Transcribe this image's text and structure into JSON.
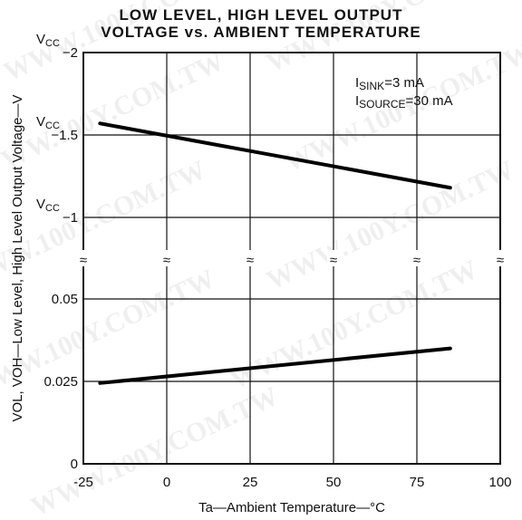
{
  "chart_data": {
    "type": "line",
    "title_lines": [
      "LOW LEVEL, HIGH LEVEL OUTPUT",
      "VOLTAGE vs. AMBIENT TEMPERATURE"
    ],
    "xlabel": "Ta—Ambient Temperature—°C",
    "ylabel": "VOL, VOH—Low Level, High Level Output Voltage—V",
    "x_ticks": [
      "-25",
      "0",
      "25",
      "50",
      "75",
      "100"
    ],
    "xlim": [
      -25,
      100
    ],
    "grid": true,
    "axis_break": "≈",
    "upper_panel": {
      "ylim": [
        -2,
        -1
      ],
      "y_ticks": [
        {
          "value": -2,
          "prefix": "VCC",
          "label": "−2"
        },
        {
          "value": -1.5,
          "prefix": "VCC",
          "label": "−1.5"
        },
        {
          "value": -1,
          "prefix": "VCC",
          "label": "−1"
        }
      ],
      "series": [
        {
          "x": [
            -20,
            85
          ],
          "values": [
            -1.57,
            -1.18
          ]
        }
      ]
    },
    "lower_panel": {
      "ylim": [
        0,
        0.05
      ],
      "y_ticks": [
        {
          "value": 0.05,
          "label": "0.05"
        },
        {
          "value": 0.025,
          "label": "0.025"
        },
        {
          "value": 0,
          "label": "0"
        }
      ],
      "series": [
        {
          "x": [
            -20,
            85
          ],
          "values": [
            0.0245,
            0.035
          ]
        }
      ]
    },
    "annotations": [
      {
        "main": "I",
        "sub": "SINK",
        "rest": "=3 mA"
      },
      {
        "main": "I",
        "sub": "SOURCE",
        "rest": "=30 mA"
      }
    ]
  },
  "watermark": "WWW.100Y.COM.TW"
}
